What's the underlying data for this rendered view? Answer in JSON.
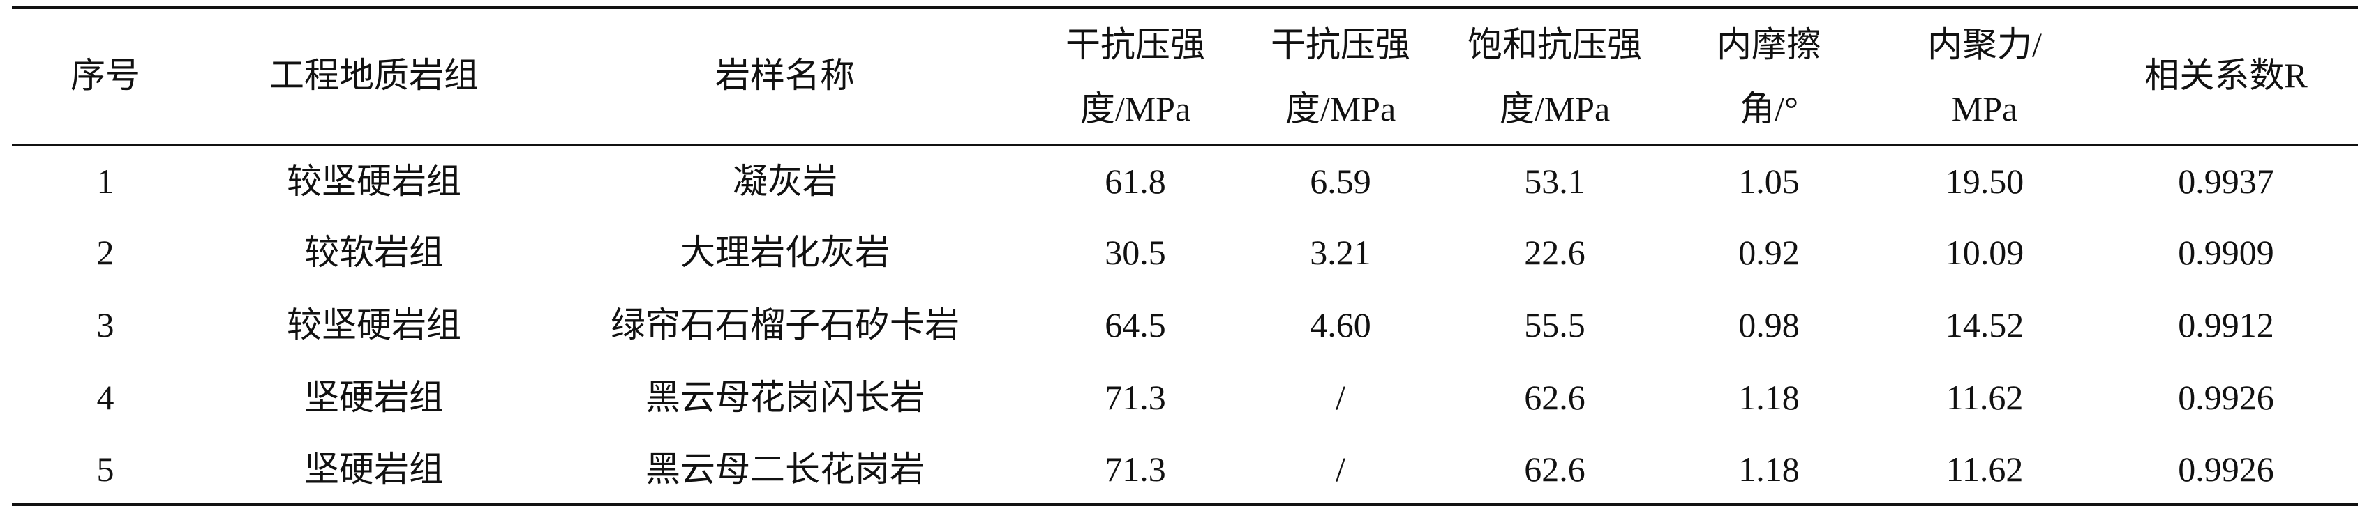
{
  "table": {
    "header": [
      "序号",
      "工程地质岩组",
      "岩样名称",
      [
        "干抗压强",
        "度/MPa"
      ],
      [
        "干抗压强",
        "度/MPa"
      ],
      [
        "饱和抗压强",
        "度/MPa"
      ],
      [
        "内摩擦",
        "角/°"
      ],
      [
        "内聚力/",
        "MPa"
      ],
      "相关系数R"
    ],
    "rows": [
      [
        "1",
        "较坚硬岩组",
        "凝灰岩",
        "61.8",
        "6.59",
        "53.1",
        "1.05",
        "19.50",
        "0.9937"
      ],
      [
        "2",
        "较软岩组",
        "大理岩化灰岩",
        "30.5",
        "3.21",
        "22.6",
        "0.92",
        "10.09",
        "0.9909"
      ],
      [
        "3",
        "较坚硬岩组",
        "绿帘石石榴子石矽卡岩",
        "64.5",
        "4.60",
        "55.5",
        "0.98",
        "14.52",
        "0.9912"
      ],
      [
        "4",
        "坚硬岩组",
        "黑云母花岗闪长岩",
        "71.3",
        "/",
        "62.6",
        "1.18",
        "11.62",
        "0.9926"
      ],
      [
        "5",
        "坚硬岩组",
        "黑云母二长花岗岩",
        "71.3",
        "/",
        "62.6",
        "1.18",
        "11.62",
        "0.9926"
      ]
    ]
  }
}
